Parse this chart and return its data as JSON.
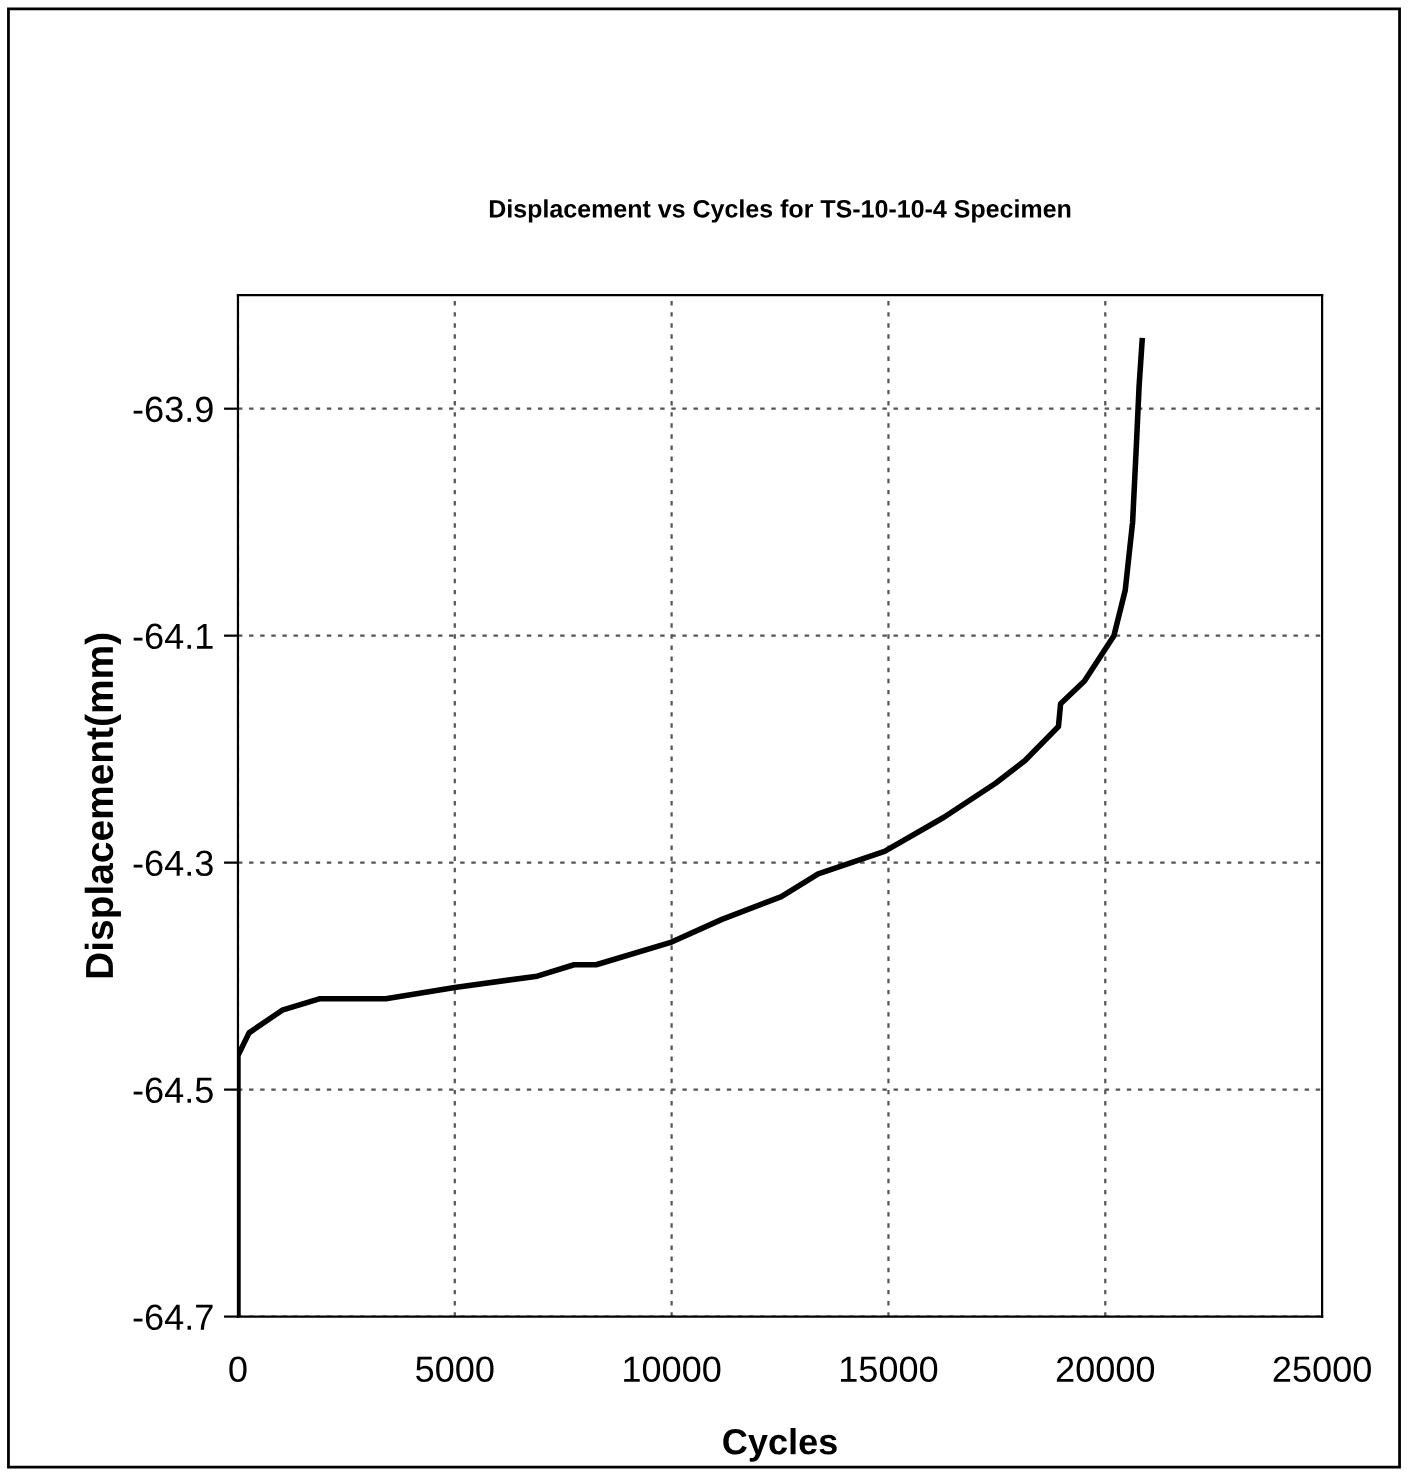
{
  "chart_data": {
    "type": "line",
    "title": "Displacement vs Cycles for TS-10-10-4 Specimen",
    "xlabel": "Cycles",
    "ylabel": "Displacement(mm)",
    "series": [
      {
        "color": "#000000",
        "x": [
          0,
          0,
          256,
          1020,
          1875,
          3410,
          5000,
          6900,
          7750,
          8260,
          10000,
          11160,
          12530,
          13380,
          14910,
          16280,
          17470,
          18150,
          18920,
          18970,
          19520,
          20200,
          20460,
          20630,
          20720,
          20780,
          20850
        ],
        "values": [
          -64.7,
          -64.47,
          -64.45,
          -64.43,
          -64.42,
          -64.42,
          -64.41,
          -64.4,
          -64.39,
          -64.39,
          -64.37,
          -64.35,
          -64.33,
          -64.31,
          -64.29,
          -64.26,
          -64.23,
          -64.21,
          -64.18,
          -64.16,
          -64.14,
          -64.1,
          -64.06,
          -64.0,
          -63.93,
          -63.88,
          -63.84
        ]
      }
    ],
    "xlim": [
      0,
      25000
    ],
    "xticks": [
      0,
      5000,
      10000,
      15000,
      20000,
      25000
    ],
    "ylim": [
      -64.7,
      -63.8
    ],
    "yticks": [
      -64.7,
      -64.5,
      -64.3,
      -64.1,
      -63.9
    ],
    "grid": true,
    "marker": "none",
    "line_style": "solid"
  }
}
